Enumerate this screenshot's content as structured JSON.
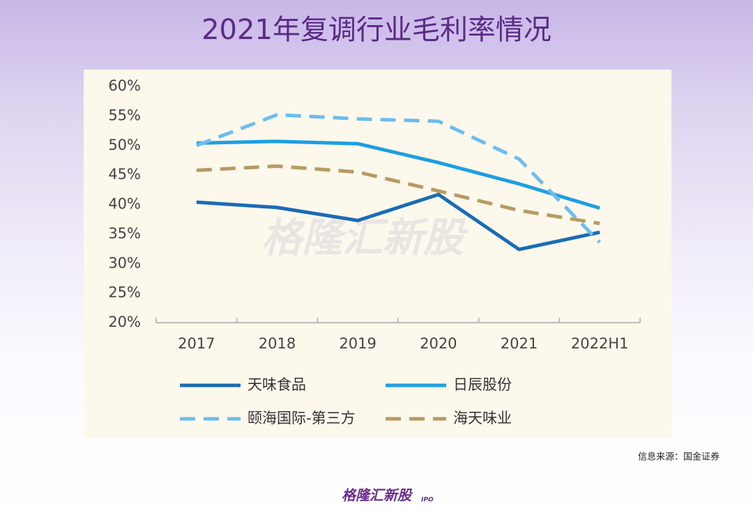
{
  "chart_data": {
    "type": "line",
    "title": "2021年复调行业毛利率情况",
    "categories": [
      "2017",
      "2018",
      "2019",
      "2020",
      "2021",
      "2022H1"
    ],
    "series": [
      {
        "name": "天味食品",
        "color": "#1a6cb5",
        "line_style": "solid",
        "values": [
          40.4,
          39.5,
          37.3,
          41.7,
          32.4,
          35.3
        ]
      },
      {
        "name": "日辰股份",
        "color": "#1d9fe0",
        "line_style": "solid",
        "values": [
          50.4,
          50.7,
          50.3,
          47.1,
          43.5,
          39.4
        ]
      },
      {
        "name": "颐海国际-第三方",
        "color": "#6bbdf0",
        "line_style": "dashed",
        "values": [
          50.0,
          55.2,
          54.5,
          54.1,
          47.7,
          33.6
        ]
      },
      {
        "name": "海天味业",
        "color": "#b89a62",
        "line_style": "dashed",
        "values": [
          45.8,
          46.5,
          45.5,
          42.3,
          39.0,
          36.8
        ]
      }
    ],
    "ylim": [
      20,
      60
    ],
    "yticks": [
      {
        "value": 20,
        "label": "20%"
      },
      {
        "value": 25,
        "label": "25%"
      },
      {
        "value": 30,
        "label": "30%"
      },
      {
        "value": 35,
        "label": "35%"
      },
      {
        "value": 40,
        "label": "40%"
      },
      {
        "value": 45,
        "label": "45%"
      },
      {
        "value": 50,
        "label": "50%"
      },
      {
        "value": 55,
        "label": "55%"
      },
      {
        "value": 60,
        "label": "60%"
      }
    ],
    "grid": false,
    "source": "信息来源：国金证券",
    "watermark": "格隆汇新股",
    "logo": "格隆汇新股",
    "logo_tag": "IPO"
  }
}
